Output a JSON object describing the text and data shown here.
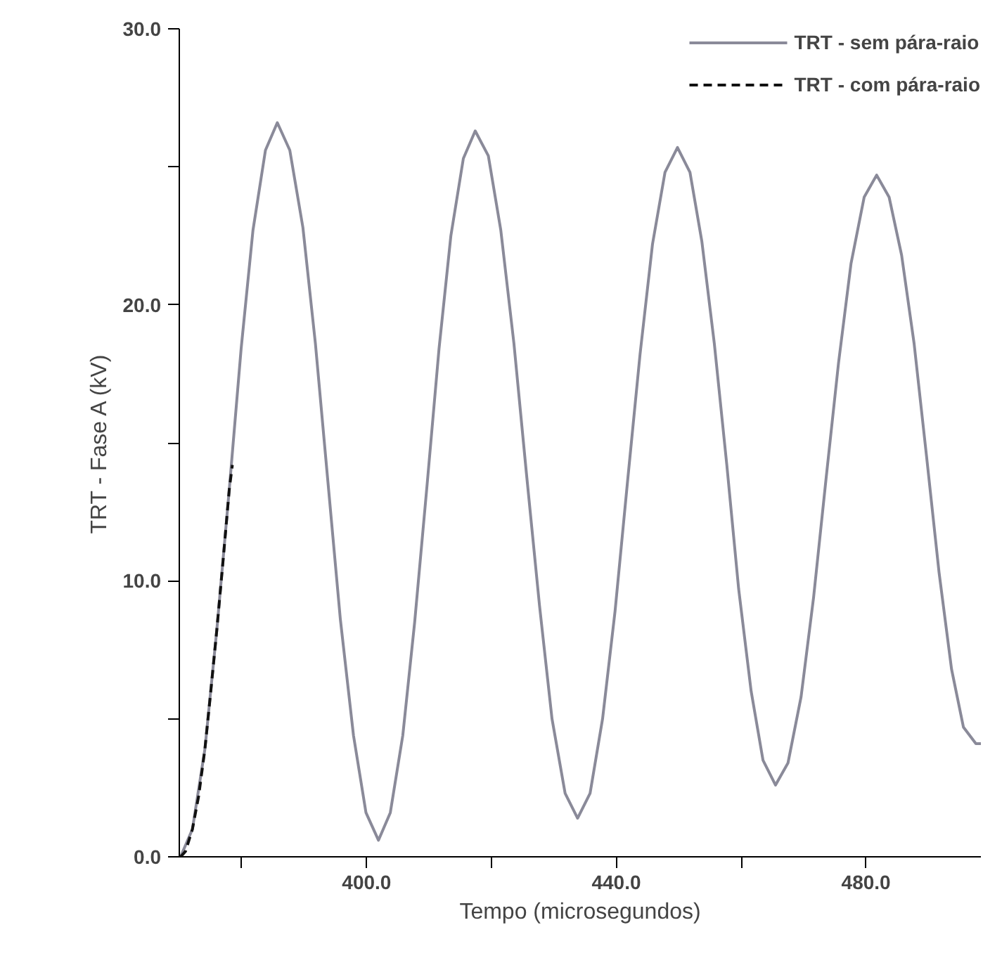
{
  "chart_data": {
    "type": "line",
    "xlabel": "Tempo (microsegundos)",
    "ylabel": "TRT - Fase A (kV)",
    "xlim": [
      370,
      498.4
    ],
    "ylim": [
      0,
      30
    ],
    "xticks": [
      {
        "value": 380,
        "label": null
      },
      {
        "value": 400,
        "label": "400.0"
      },
      {
        "value": 420,
        "label": null
      },
      {
        "value": 440,
        "label": "440.0"
      },
      {
        "value": 460,
        "label": null
      },
      {
        "value": 480,
        "label": "480.0"
      }
    ],
    "yticks": [
      {
        "value": 0,
        "label": "0.0"
      },
      {
        "value": 5,
        "label": null
      },
      {
        "value": 10,
        "label": "10.0"
      },
      {
        "value": 15,
        "label": null
      },
      {
        "value": 20,
        "label": "20.0"
      },
      {
        "value": 25,
        "label": null
      },
      {
        "value": 30,
        "label": "30.0"
      }
    ],
    "grid": false,
    "legend": "top right",
    "series": [
      {
        "name": "TRT - sem pára-raio",
        "color": "#8a8a99",
        "line_style": "solid",
        "x": [
          370.2,
          372.1,
          374.1,
          376.0,
          378.0,
          379.9,
          381.8,
          383.8,
          385.7,
          387.7,
          389.8,
          391.8,
          393.8,
          395.8,
          397.9,
          399.9,
          401.9,
          403.8,
          405.8,
          407.7,
          409.7,
          411.6,
          413.5,
          415.5,
          417.4,
          419.5,
          421.5,
          423.6,
          425.6,
          427.7,
          429.7,
          431.8,
          433.8,
          435.8,
          437.8,
          439.8,
          441.8,
          443.8,
          445.8,
          447.8,
          449.8,
          451.8,
          453.7,
          455.7,
          457.7,
          459.6,
          461.6,
          463.5,
          465.5,
          467.5,
          469.6,
          471.6,
          473.6,
          475.6,
          477.6,
          479.7,
          481.7,
          483.7,
          485.7,
          487.7,
          489.7,
          491.7,
          493.7,
          495.6,
          497.6,
          498.4
        ],
        "values": [
          0,
          1.0,
          3.9,
          8.2,
          13.3,
          18.4,
          22.7,
          25.6,
          26.6,
          25.6,
          22.8,
          18.6,
          13.6,
          8.6,
          4.4,
          1.6,
          0.6,
          1.6,
          4.4,
          8.5,
          13.5,
          18.4,
          22.5,
          25.3,
          26.3,
          25.4,
          22.7,
          18.6,
          13.9,
          9.1,
          5.0,
          2.3,
          1.4,
          2.3,
          5.0,
          8.9,
          13.6,
          18.2,
          22.2,
          24.8,
          25.7,
          24.8,
          22.3,
          18.6,
          14.2,
          9.7,
          6.0,
          3.5,
          2.6,
          3.4,
          5.8,
          9.4,
          13.7,
          17.9,
          21.5,
          23.9,
          24.7,
          23.9,
          21.8,
          18.6,
          14.5,
          10.3,
          6.8,
          4.7,
          4.1,
          4.1
        ]
      },
      {
        "name": "TRT - com pára-raio",
        "color": "#111111",
        "line_style": "dashed",
        "x": [
          370.2,
          371.0,
          372.1,
          373.1,
          374.1,
          375.0,
          376.0,
          377.0,
          378.0,
          378.5
        ],
        "values": [
          0,
          0.2,
          1.0,
          2.2,
          3.9,
          5.9,
          8.2,
          10.7,
          13.3,
          14.2
        ]
      }
    ]
  }
}
